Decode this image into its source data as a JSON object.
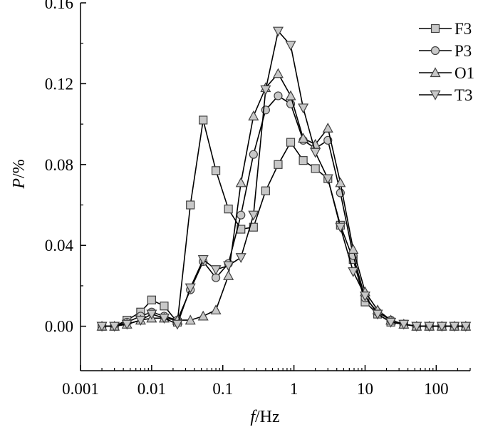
{
  "chart_data": {
    "type": "line",
    "title": "",
    "xlabel": "f/Hz",
    "xlabel_italic": "f",
    "xlabel_rest": "/Hz",
    "ylabel": "P/%",
    "ylabel_italic": "P",
    "ylabel_rest": "/%",
    "x_scale": "log",
    "xlim": [
      0.001,
      300
    ],
    "ylim": [
      -0.022,
      0.16
    ],
    "x_ticks": [
      {
        "value": 0.001,
        "label": "0.001"
      },
      {
        "value": 0.01,
        "label": "0.01"
      },
      {
        "value": 0.1,
        "label": "0.1"
      },
      {
        "value": 1,
        "label": "1"
      },
      {
        "value": 10,
        "label": "10"
      },
      {
        "value": 100,
        "label": "100"
      }
    ],
    "y_ticks": [
      {
        "value": 0.0,
        "label": "0.00"
      },
      {
        "value": 0.04,
        "label": "0.04"
      },
      {
        "value": 0.08,
        "label": "0.08"
      },
      {
        "value": 0.12,
        "label": "0.12"
      },
      {
        "value": 0.16,
        "label": "0.16"
      }
    ],
    "grid": false,
    "legend_position": "top-right",
    "x": [
      0.002,
      0.003,
      0.0045,
      0.007,
      0.01,
      0.015,
      0.023,
      0.035,
      0.053,
      0.08,
      0.12,
      0.18,
      0.27,
      0.4,
      0.6,
      0.9,
      1.35,
      2.0,
      3.0,
      4.5,
      6.8,
      10,
      15,
      23,
      35,
      53,
      80,
      120,
      180,
      260
    ],
    "series": [
      {
        "name": "F3",
        "marker": "square",
        "values": [
          0.0,
          0.0,
          0.003,
          0.007,
          0.013,
          0.01,
          0.002,
          0.06,
          0.102,
          0.077,
          0.058,
          0.048,
          0.049,
          0.067,
          0.08,
          0.091,
          0.082,
          0.078,
          0.073,
          0.05,
          0.033,
          0.012,
          0.006,
          0.002,
          0.001,
          0.0,
          0.0,
          0.0,
          0.0,
          0.0
        ]
      },
      {
        "name": "P3",
        "marker": "circle",
        "values": [
          0.0,
          0.0,
          0.002,
          0.005,
          0.007,
          0.005,
          0.003,
          0.018,
          0.032,
          0.024,
          0.031,
          0.055,
          0.085,
          0.107,
          0.114,
          0.11,
          0.092,
          0.088,
          0.092,
          0.066,
          0.035,
          0.014,
          0.007,
          0.003,
          0.001,
          0.0,
          0.0,
          0.0,
          0.0,
          0.0
        ]
      },
      {
        "name": "O1",
        "marker": "triangle-up",
        "values": [
          0.0,
          0.0,
          0.001,
          0.003,
          0.004,
          0.004,
          0.003,
          0.003,
          0.005,
          0.008,
          0.025,
          0.071,
          0.104,
          0.118,
          0.125,
          0.114,
          0.093,
          0.09,
          0.098,
          0.071,
          0.038,
          0.017,
          0.008,
          0.003,
          0.001,
          0.0,
          0.0,
          0.0,
          0.0,
          0.0
        ]
      },
      {
        "name": "T3",
        "marker": "triangle-down",
        "values": [
          0.0,
          0.0,
          0.001,
          0.003,
          0.006,
          0.004,
          0.001,
          0.019,
          0.033,
          0.028,
          0.03,
          0.034,
          0.055,
          0.117,
          0.146,
          0.139,
          0.108,
          0.086,
          0.073,
          0.049,
          0.027,
          0.015,
          0.006,
          0.002,
          0.001,
          0.0,
          0.0,
          0.0,
          0.0,
          0.0
        ]
      }
    ],
    "colors": {
      "line": "#000000",
      "marker_fill": "#c8c8c8",
      "marker_stroke": "#404040"
    }
  }
}
